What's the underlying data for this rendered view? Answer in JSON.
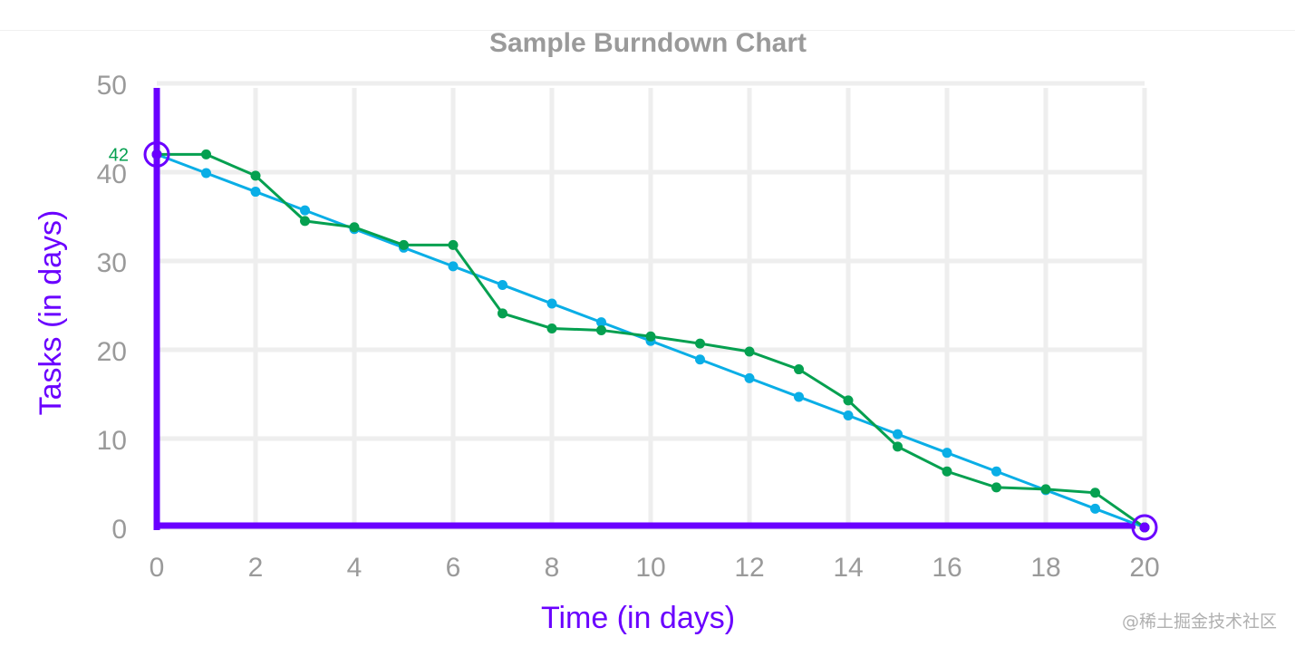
{
  "chart_data": {
    "type": "line",
    "title": "Sample Burndown Chart",
    "xlabel": "Time (in days)",
    "ylabel": "Tasks (in days)",
    "xlim": [
      0,
      20
    ],
    "ylim": [
      0,
      50
    ],
    "x_ticks": [
      "0",
      "2",
      "4",
      "6",
      "8",
      "10",
      "12",
      "14",
      "16",
      "18",
      "20"
    ],
    "y_ticks": [
      "0",
      "10",
      "20",
      "30",
      "40",
      "50"
    ],
    "grid": true,
    "x": [
      0,
      1,
      2,
      3,
      4,
      5,
      6,
      7,
      8,
      9,
      10,
      11,
      12,
      13,
      14,
      15,
      16,
      17,
      18,
      19,
      20
    ],
    "series": [
      {
        "values": [
          42,
          39.9,
          37.8,
          35.7,
          33.6,
          31.5,
          29.4,
          27.3,
          25.2,
          23.1,
          21,
          18.9,
          16.8,
          14.7,
          12.6,
          10.5,
          8.4,
          6.3,
          4.2,
          2.1,
          0
        ],
        "color": "#0aaee6"
      },
      {
        "values": [
          42,
          42,
          39.6,
          34.5,
          33.8,
          31.8,
          31.8,
          24.1,
          22.4,
          22.2,
          21.5,
          20.7,
          19.8,
          17.8,
          14.3,
          9.1,
          6.3,
          4.5,
          4.3,
          3.9,
          0
        ],
        "color": "#05a050"
      }
    ],
    "annotations": [
      {
        "text": "42",
        "x": 0,
        "y": 42,
        "color": "#05a050"
      },
      {
        "text": "20",
        "x": 20,
        "y": 0,
        "color": "#e01020"
      }
    ],
    "axis_color": "#6a00ff",
    "grid_color": "#eeeeee"
  },
  "watermark": "@稀土掘金技术社区"
}
